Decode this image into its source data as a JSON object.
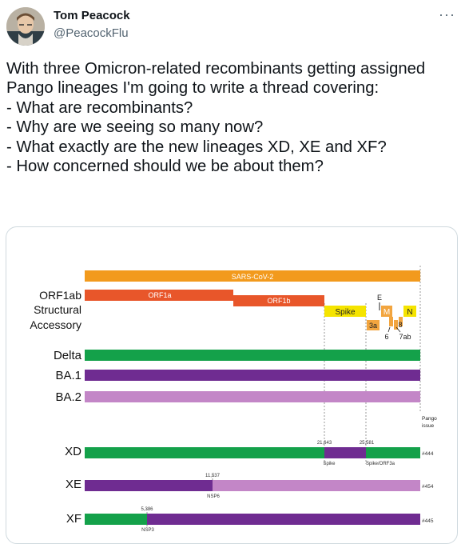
{
  "author": {
    "name": "Tom Peacock",
    "handle": "@PeacockFlu",
    "avatar_icon": "profile-photo"
  },
  "menu_icon": "more-options-icon",
  "tweet_text": "With three Omicron-related recombinants getting assigned Pango lineages I'm going to write a thread covering:\n- What are recombinants?\n- Why are we seeing so many now?\n- What exactly are the new lineages XD, XE and XF?\n- How concerned should we be about them?",
  "figure": {
    "genome_label": "SARS-CoV-2",
    "row_labels": {
      "orf1ab": "ORF1ab",
      "structural": "Structural",
      "accessory": "Accessory",
      "delta": "Delta",
      "ba1": "BA.1",
      "ba2": "BA.2",
      "xd": "XD",
      "xe": "XE",
      "xf": "XF"
    },
    "genes": {
      "orf1a": "ORF1a",
      "orf1b": "ORF1b",
      "spike": "Spike",
      "e": "E",
      "m": "M",
      "n": "N",
      "orf3a": "3a",
      "orf6": "6",
      "orf7ab": "7ab",
      "orf8": "8"
    },
    "pango_header": "Pango\nissue",
    "breakpoints": {
      "xd_bp1": "21,643",
      "xd_bp2": "25,581",
      "xd_gene1": "Spike",
      "xd_gene2": "Spike/ORF3a",
      "xe_bp": "11,537",
      "xe_gene": "NSP6",
      "xf_bp": "5,386",
      "xf_gene": "NSP3"
    },
    "pango_issues": {
      "xd": "#444",
      "xe": "#454",
      "xf": "#445"
    },
    "colors": {
      "genome": "#f29a1d",
      "orf1ab": "#e8562a",
      "structural": "#f5e400",
      "accessory": "#f2a53f",
      "delta": "#14a14a",
      "ba1": "#6f2c91",
      "ba2": "#c386c7"
    }
  }
}
